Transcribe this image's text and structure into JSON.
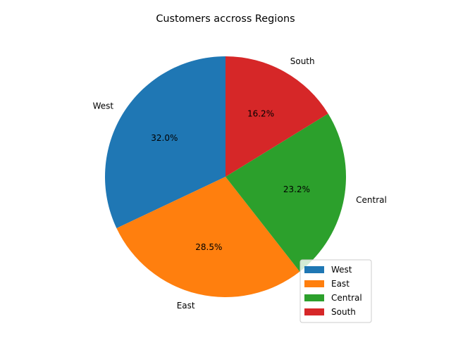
{
  "chart_data": {
    "type": "pie",
    "title": "Customers accross Regions",
    "categories": [
      "West",
      "East",
      "Central",
      "South"
    ],
    "values": [
      32.0,
      28.5,
      23.2,
      16.2
    ],
    "percent_labels": [
      "32.0%",
      "28.5%",
      "23.2%",
      "16.2%"
    ],
    "colors": [
      "#1f77b4",
      "#ff7f0e",
      "#2ca02c",
      "#d62728"
    ],
    "start_angle_deg": 90,
    "direction": "counterclockwise",
    "legend": {
      "placement": "lower-right",
      "entries": [
        "West",
        "East",
        "Central",
        "South"
      ]
    }
  }
}
